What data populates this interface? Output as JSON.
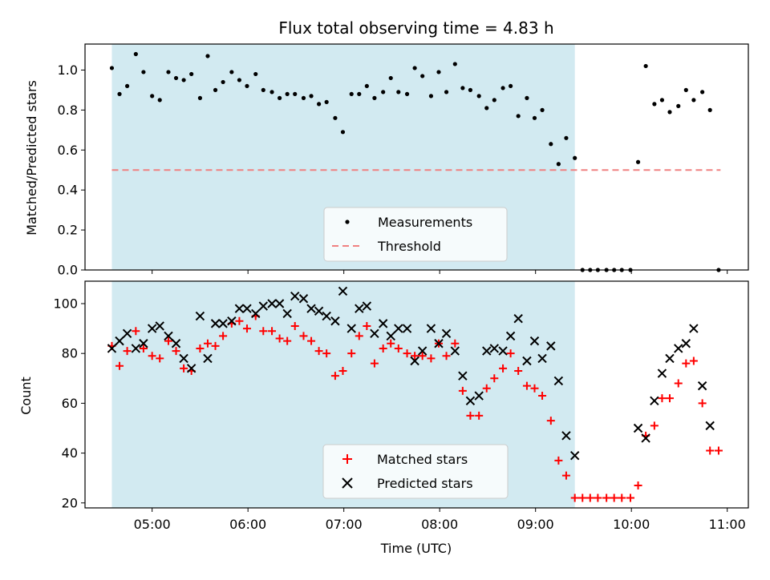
{
  "chart_data": [
    {
      "type": "scatter",
      "title": "Flux total observing time = 4.83 h",
      "xlabel": "",
      "ylabel": "Matched/Predicted stars",
      "ylim": [
        0.0,
        1.13
      ],
      "yticks": [
        "0.0",
        "0.2",
        "0.4",
        "0.6",
        "0.8",
        "1.0"
      ],
      "xlim": [
        4.3,
        11.22
      ],
      "shaded_interval": [
        4.58,
        9.41
      ],
      "shade_color": "#add8e6",
      "threshold": {
        "name": "Threshold",
        "value": 0.5,
        "x_range": [
          4.58,
          10.93
        ],
        "color": "#f08080"
      },
      "series": [
        {
          "name": "Measurements",
          "color": "#000000",
          "marker": "dot",
          "x": [
            4.58,
            4.66,
            4.74,
            4.83,
            4.91,
            5.0,
            5.08,
            5.17,
            5.25,
            5.33,
            5.41,
            5.5,
            5.58,
            5.66,
            5.74,
            5.83,
            5.91,
            5.99,
            6.08,
            6.16,
            6.25,
            6.33,
            6.41,
            6.49,
            6.58,
            6.66,
            6.74,
            6.82,
            6.91,
            6.99,
            7.08,
            7.16,
            7.24,
            7.32,
            7.41,
            7.49,
            7.57,
            7.66,
            7.74,
            7.82,
            7.91,
            7.99,
            8.07,
            8.16,
            8.24,
            8.32,
            8.41,
            8.49,
            8.57,
            8.66,
            8.74,
            8.82,
            8.91,
            8.99,
            9.07,
            9.16,
            9.24,
            9.32,
            9.41,
            9.49,
            9.57,
            9.65,
            9.74,
            9.82,
            9.9,
            9.99,
            10.07,
            10.15,
            10.24,
            10.32,
            10.4,
            10.49,
            10.57,
            10.65,
            10.74,
            10.82,
            10.91
          ],
          "values": [
            1.01,
            0.88,
            0.92,
            1.08,
            0.99,
            0.87,
            0.85,
            0.99,
            0.96,
            0.95,
            0.98,
            0.86,
            1.07,
            0.9,
            0.94,
            0.99,
            0.95,
            0.92,
            0.98,
            0.9,
            0.89,
            0.86,
            0.88,
            0.88,
            0.86,
            0.87,
            0.83,
            0.84,
            0.76,
            0.69,
            0.88,
            0.88,
            0.92,
            0.86,
            0.89,
            0.96,
            0.89,
            0.88,
            1.01,
            0.97,
            0.87,
            0.99,
            0.89,
            1.03,
            0.91,
            0.9,
            0.87,
            0.81,
            0.85,
            0.91,
            0.92,
            0.77,
            0.86,
            0.76,
            0.8,
            0.63,
            0.53,
            0.66,
            0.56,
            0.0,
            0.0,
            0.0,
            0.0,
            0.0,
            0.0,
            0.0,
            0.54,
            1.02,
            0.83,
            0.85,
            0.79,
            0.82,
            0.9,
            0.85,
            0.89,
            0.8,
            0.0
          ]
        }
      ],
      "legend": {
        "placement": "lower-center",
        "items": [
          "Measurements",
          "Threshold"
        ]
      }
    },
    {
      "type": "scatter",
      "title": "",
      "xlabel": "Time (UTC)",
      "ylabel": "Count",
      "ylim": [
        18,
        109
      ],
      "yticks": [
        "20",
        "40",
        "60",
        "80",
        "100"
      ],
      "xlim": [
        4.3,
        11.22
      ],
      "xticks": [
        "05:00",
        "06:00",
        "07:00",
        "08:00",
        "09:00",
        "10:00",
        "11:00"
      ],
      "shaded_interval": [
        4.58,
        9.41
      ],
      "series": [
        {
          "name": "Matched stars",
          "color": "#ff0000",
          "marker": "plus",
          "x": [
            4.58,
            4.66,
            4.74,
            4.83,
            4.91,
            5.0,
            5.08,
            5.17,
            5.25,
            5.33,
            5.41,
            5.5,
            5.58,
            5.66,
            5.74,
            5.83,
            5.91,
            5.99,
            6.08,
            6.16,
            6.25,
            6.33,
            6.41,
            6.49,
            6.58,
            6.66,
            6.74,
            6.82,
            6.91,
            6.99,
            7.08,
            7.16,
            7.24,
            7.32,
            7.41,
            7.49,
            7.57,
            7.66,
            7.74,
            7.82,
            7.91,
            7.99,
            8.07,
            8.16,
            8.24,
            8.32,
            8.41,
            8.49,
            8.57,
            8.66,
            8.74,
            8.82,
            8.91,
            8.99,
            9.07,
            9.16,
            9.24,
            9.32,
            9.41,
            9.49,
            9.57,
            9.65,
            9.74,
            9.82,
            9.9,
            9.99,
            10.07,
            10.15,
            10.24,
            10.32,
            10.4,
            10.49,
            10.57,
            10.65,
            10.74,
            10.82,
            10.91
          ],
          "values": [
            83,
            75,
            81,
            89,
            82,
            79,
            78,
            85,
            81,
            74,
            73,
            82,
            84,
            83,
            87,
            92,
            93,
            90,
            95,
            89,
            89,
            86,
            85,
            91,
            87,
            85,
            81,
            80,
            71,
            73,
            80,
            87,
            91,
            76,
            82,
            84,
            82,
            80,
            79,
            79,
            78,
            84,
            79,
            84,
            65,
            55,
            55,
            66,
            70,
            74,
            80,
            73,
            67,
            66,
            63,
            53,
            37,
            31,
            22,
            22,
            22,
            22,
            22,
            22,
            22,
            22,
            27,
            47,
            51,
            62,
            62,
            68,
            76,
            77,
            60,
            41,
            41
          ]
        },
        {
          "name": "Predicted stars",
          "color": "#000000",
          "marker": "cross",
          "x": [
            4.58,
            4.66,
            4.74,
            4.83,
            4.91,
            5.0,
            5.08,
            5.17,
            5.25,
            5.33,
            5.41,
            5.5,
            5.58,
            5.66,
            5.74,
            5.83,
            5.91,
            5.99,
            6.08,
            6.16,
            6.25,
            6.33,
            6.41,
            6.49,
            6.58,
            6.66,
            6.74,
            6.82,
            6.91,
            6.99,
            7.08,
            7.16,
            7.24,
            7.32,
            7.41,
            7.49,
            7.57,
            7.66,
            7.74,
            7.82,
            7.91,
            7.99,
            8.07,
            8.16,
            8.24,
            8.32,
            8.41,
            8.49,
            8.57,
            8.66,
            8.74,
            8.82,
            8.91,
            8.99,
            9.07,
            9.16,
            9.24,
            9.32,
            9.41,
            10.07,
            10.15,
            10.24,
            10.32,
            10.4,
            10.49,
            10.57,
            10.65,
            10.74,
            10.82
          ],
          "values": [
            82,
            85,
            88,
            82,
            84,
            90,
            91,
            87,
            84,
            78,
            74,
            95,
            78,
            92,
            92,
            93,
            98,
            98,
            96,
            99,
            100,
            100,
            96,
            103,
            102,
            98,
            97,
            95,
            93,
            105,
            90,
            98,
            99,
            88,
            92,
            87,
            90,
            90,
            77,
            81,
            90,
            84,
            88,
            81,
            71,
            61,
            63,
            81,
            82,
            81,
            87,
            94,
            77,
            85,
            78,
            83,
            69,
            47,
            39,
            50,
            46,
            61,
            72,
            78,
            82,
            84,
            90,
            67,
            51
          ]
        }
      ],
      "legend": {
        "placement": "lower-center",
        "items": [
          "Matched stars",
          "Predicted stars"
        ]
      }
    }
  ]
}
